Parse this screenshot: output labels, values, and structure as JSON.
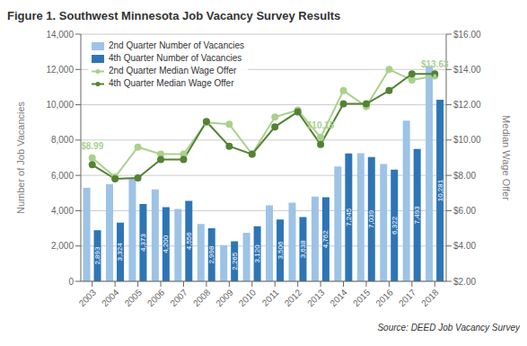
{
  "chart_data": {
    "type": "bar",
    "title": "Figure 1. Southwest Minnesota Job Vacancy Survey Results",
    "ylabel": "Number of Job Vacancies",
    "y2label": "Median Wage Offer",
    "categories": [
      "2003",
      "2004",
      "2005",
      "2006",
      "2007",
      "2008",
      "2009",
      "2010",
      "2011",
      "2012",
      "2013",
      "2014",
      "2015",
      "2016",
      "2017",
      "2018"
    ],
    "series": [
      {
        "name": "2nd Quarter Number of Vacancies",
        "type": "bar",
        "color": "#9DC3E6",
        "values": [
          5300,
          5500,
          5800,
          5200,
          4100,
          3250,
          2050,
          2750,
          4300,
          4450,
          4800,
          6500,
          7250,
          6650,
          9100,
          12200
        ]
      },
      {
        "name": "4th Quarter Number of Vacancies",
        "type": "bar",
        "color": "#2E75B6",
        "data_labels": true,
        "values": [
          2893,
          3324,
          4373,
          4200,
          4556,
          2998,
          2265,
          3120,
          3506,
          3638,
          4762,
          7245,
          7039,
          6322,
          7493,
          10281
        ],
        "value_labels": [
          "2,893",
          "3,324",
          "4,373",
          "4,200",
          "4,556",
          "2,998",
          "2,265",
          "3,120",
          "3,506",
          "3,638",
          "4,762",
          "7,245",
          "7,039",
          "6,322",
          "7,493",
          "10,281"
        ]
      },
      {
        "name": "2nd Quarter Median Wage Offer",
        "type": "line",
        "axis": "y2",
        "color": "#A9D18E",
        "marker": "circle",
        "values": [
          8.99,
          7.9,
          9.6,
          9.2,
          9.2,
          11.0,
          10.9,
          9.2,
          11.3,
          11.7,
          10.15,
          12.8,
          11.9,
          14.0,
          13.4,
          13.63
        ]
      },
      {
        "name": "4th Quarter Median Wage Offer",
        "type": "line",
        "axis": "y2",
        "color": "#548235",
        "marker": "circle",
        "values": [
          8.6,
          7.8,
          7.85,
          8.9,
          8.9,
          11.05,
          9.65,
          9.2,
          10.75,
          11.6,
          9.75,
          12.05,
          12.05,
          12.8,
          13.75,
          13.75
        ]
      }
    ],
    "ylim": [
      0,
      14000
    ],
    "yticks": [
      0,
      {
        "value": 2000,
        "label": "2,000"
      },
      {
        "value": 4000,
        "label": "4,000"
      },
      {
        "value": 6000,
        "label": "6,000"
      },
      {
        "value": 8000,
        "label": "8,000"
      },
      {
        "value": 10000,
        "label": "10,000"
      },
      {
        "value": 12000,
        "label": "12,000"
      },
      {
        "value": 14000,
        "label": "14,000"
      }
    ],
    "y2lim": [
      2.0,
      16.0
    ],
    "y2ticks": [
      {
        "value": 2,
        "label": "$2.00"
      },
      {
        "value": 4,
        "label": "$4.00"
      },
      {
        "value": 6,
        "label": "$6.00"
      },
      {
        "value": 8,
        "label": "$8.00"
      },
      {
        "value": 10,
        "label": "$10.00"
      },
      {
        "value": 12,
        "label": "$12.00"
      },
      {
        "value": 14,
        "label": "$14.00"
      },
      {
        "value": 16,
        "label": "$16.00"
      }
    ],
    "annotations": [
      {
        "text": "$8.99",
        "x": "2003",
        "y": 8.99,
        "axis": "y2",
        "color": "#A9D18E"
      },
      {
        "text": "$10.15",
        "x": "2013",
        "y": 10.15,
        "axis": "y2",
        "color": "#A9D18E"
      },
      {
        "text": "$13.63",
        "x": "2018",
        "y": 13.63,
        "axis": "y2",
        "color": "#A9D18E"
      },
      {
        "text": "Source: DEED Job Vacancy Survey"
      }
    ],
    "grid": true,
    "legend": "upper left"
  }
}
